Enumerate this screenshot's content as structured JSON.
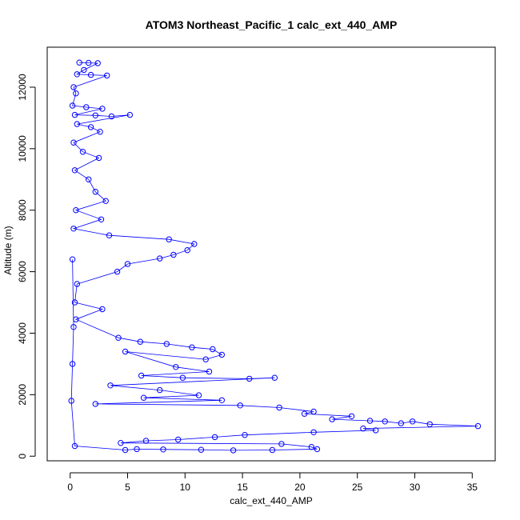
{
  "chart_data": {
    "type": "scatter",
    "title": "ATOM3 Northeast_Pacific_1 calc_ext_440_AMP",
    "xlabel": "calc_ext_440_AMP",
    "ylabel": "Altitude (m)",
    "xlim": [
      -2,
      37
    ],
    "ylim": [
      -150,
      13300
    ],
    "x_ticks": [
      0,
      5,
      10,
      15,
      20,
      25,
      30,
      35
    ],
    "y_ticks": [
      0,
      2000,
      4000,
      6000,
      8000,
      10000,
      12000
    ],
    "grid": false,
    "legend": "none",
    "marker": "open-circle",
    "connected": true,
    "colors": {
      "series": "#0000ff",
      "axis": "#000000"
    },
    "series": [
      {
        "values": [
          [
            0.8,
            12800
          ],
          [
            1.6,
            12790
          ],
          [
            2.4,
            12780
          ],
          [
            1.2,
            12560
          ],
          [
            0.6,
            12420
          ],
          [
            1.8,
            12400
          ],
          [
            3.2,
            12380
          ],
          [
            0.3,
            12000
          ],
          [
            0.5,
            11800
          ],
          [
            0.2,
            11400
          ],
          [
            1.4,
            11350
          ],
          [
            2.8,
            11300
          ],
          [
            0.4,
            11100
          ],
          [
            2.2,
            11080
          ],
          [
            3.6,
            11050
          ],
          [
            5.2,
            11100
          ],
          [
            0.6,
            10800
          ],
          [
            1.8,
            10700
          ],
          [
            2.6,
            10550
          ],
          [
            0.3,
            10200
          ],
          [
            1.1,
            9900
          ],
          [
            2.5,
            9700
          ],
          [
            0.4,
            9300
          ],
          [
            1.6,
            9000
          ],
          [
            2.2,
            8600
          ],
          [
            3.1,
            8300
          ],
          [
            0.5,
            8000
          ],
          [
            2.7,
            7700
          ],
          [
            0.3,
            7400
          ],
          [
            3.4,
            7180
          ],
          [
            8.6,
            7050
          ],
          [
            10.8,
            6900
          ],
          [
            10.2,
            6700
          ],
          [
            9.0,
            6550
          ],
          [
            7.8,
            6430
          ],
          [
            5.0,
            6250
          ],
          [
            4.1,
            6000
          ],
          [
            0.6,
            5600
          ],
          [
            0.4,
            5000
          ],
          [
            2.8,
            4780
          ],
          [
            0.5,
            4450
          ],
          [
            4.2,
            3850
          ],
          [
            6.1,
            3720
          ],
          [
            8.4,
            3650
          ],
          [
            10.6,
            3540
          ],
          [
            12.4,
            3480
          ],
          [
            13.2,
            3300
          ],
          [
            11.8,
            3150
          ],
          [
            4.8,
            3400
          ],
          [
            9.2,
            2900
          ],
          [
            12.1,
            2750
          ],
          [
            6.2,
            2620
          ],
          [
            9.8,
            2550
          ],
          [
            15.6,
            2520
          ],
          [
            17.8,
            2550
          ],
          [
            3.5,
            2300
          ],
          [
            7.8,
            2150
          ],
          [
            11.2,
            1980
          ],
          [
            6.4,
            1900
          ],
          [
            13.2,
            1820
          ],
          [
            2.2,
            1700
          ],
          [
            14.8,
            1650
          ],
          [
            18.2,
            1580
          ],
          [
            21.2,
            1450
          ],
          [
            20.4,
            1380
          ],
          [
            24.5,
            1300
          ],
          [
            22.8,
            1200
          ],
          [
            26.1,
            1150
          ],
          [
            27.4,
            1130
          ],
          [
            28.8,
            1070
          ],
          [
            29.8,
            1130
          ],
          [
            31.3,
            1040
          ],
          [
            35.5,
            980
          ],
          [
            25.5,
            900
          ],
          [
            26.6,
            840
          ],
          [
            21.2,
            780
          ],
          [
            15.2,
            690
          ],
          [
            12.6,
            620
          ],
          [
            9.4,
            540
          ],
          [
            6.6,
            500
          ],
          [
            4.4,
            430
          ],
          [
            18.4,
            400
          ],
          [
            21.0,
            300
          ],
          [
            21.5,
            230
          ],
          [
            17.6,
            200
          ],
          [
            14.2,
            190
          ],
          [
            11.4,
            210
          ],
          [
            8.1,
            220
          ],
          [
            5.8,
            230
          ],
          [
            4.8,
            200
          ],
          [
            0.4,
            330
          ],
          [
            0.1,
            1800
          ],
          [
            0.2,
            3000
          ],
          [
            0.3,
            4200
          ],
          [
            0.2,
            6400
          ]
        ]
      }
    ]
  }
}
